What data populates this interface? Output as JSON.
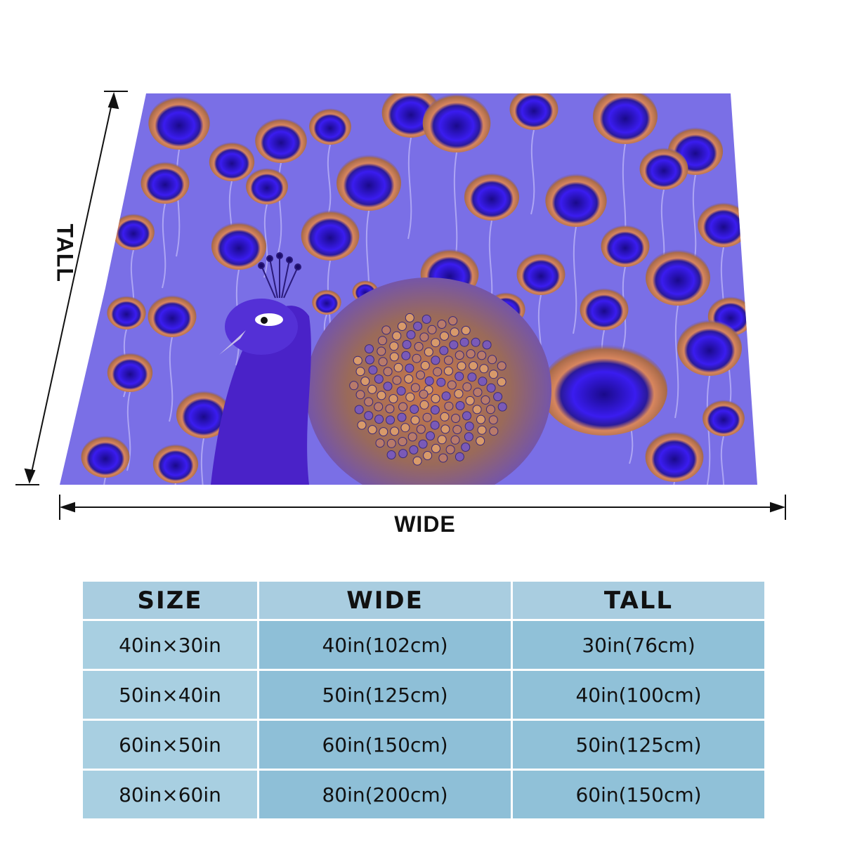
{
  "dimensions": {
    "wide_label": "WIDE",
    "tall_label": "TALL"
  },
  "artwork": {
    "subject": "peacock",
    "colors": {
      "background": "#7a6fe6",
      "eye_blue": "#3a1cf0",
      "eye_ring": "#d8865e",
      "body": "#5a2fd0"
    }
  },
  "size_table": {
    "headers": [
      "SIZE",
      "WIDE",
      "TALL"
    ],
    "rows": [
      [
        "40in×30in",
        "40in(102cm)",
        "30in(76cm)"
      ],
      [
        "50in×40in",
        "50in(125cm)",
        "40in(100cm)"
      ],
      [
        "60in×50in",
        "60in(150cm)",
        "50in(125cm)"
      ],
      [
        "80in×60in",
        "80in(200cm)",
        "60in(150cm)"
      ]
    ],
    "colors": {
      "header": "#a9cde0",
      "size_col": "#a8cfe1",
      "wide_col": "#8ebfd7",
      "tall_col": "#90c1d8"
    }
  }
}
